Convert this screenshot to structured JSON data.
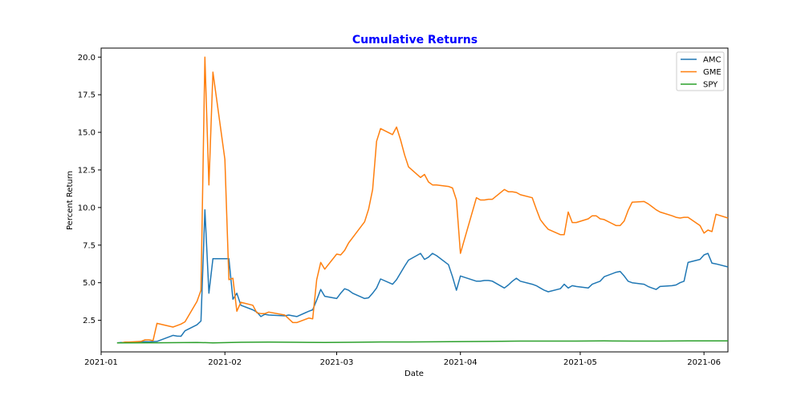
{
  "chart_data": {
    "type": "line",
    "title": "Cumulative Returns",
    "title_color": "#0000ff",
    "xlabel": "Date",
    "ylabel": "Percent Return",
    "xlim": [
      "2021-01-01",
      "2021-06-07"
    ],
    "ylim": [
      0.4,
      20.6
    ],
    "x_ticks": [
      "2021-01",
      "2021-02",
      "2021-03",
      "2021-04",
      "2021-05",
      "2021-06"
    ],
    "x_tick_dates": [
      "2021-01-01",
      "2021-02-01",
      "2021-03-01",
      "2021-04-01",
      "2021-05-01",
      "2021-06-01"
    ],
    "y_ticks": [
      "2.5",
      "5.0",
      "7.5",
      "10.0",
      "12.5",
      "15.0",
      "17.5",
      "20.0"
    ],
    "y_tick_values": [
      2.5,
      5.0,
      7.5,
      10.0,
      12.5,
      15.0,
      17.5,
      20.0
    ],
    "grid": false,
    "legend_position": "top-right",
    "series": [
      {
        "name": "AMC",
        "color": "#1f77b4",
        "points": [
          [
            "2021-01-05",
            1.0
          ],
          [
            "2021-01-06",
            1.03
          ],
          [
            "2021-01-07",
            1.02
          ],
          [
            "2021-01-08",
            1.03
          ],
          [
            "2021-01-11",
            1.05
          ],
          [
            "2021-01-12",
            1.08
          ],
          [
            "2021-01-13",
            1.07
          ],
          [
            "2021-01-14",
            1.09
          ],
          [
            "2021-01-15",
            1.1
          ],
          [
            "2021-01-19",
            1.5
          ],
          [
            "2021-01-20",
            1.45
          ],
          [
            "2021-01-21",
            1.44
          ],
          [
            "2021-01-22",
            1.8
          ],
          [
            "2021-01-25",
            2.2
          ],
          [
            "2021-01-26",
            2.45
          ],
          [
            "2021-01-27",
            9.85
          ],
          [
            "2021-01-28",
            4.3
          ],
          [
            "2021-01-29",
            6.6
          ],
          [
            "2021-02-01",
            6.6
          ],
          [
            "2021-02-02",
            6.6
          ],
          [
            "2021-02-03",
            3.9
          ],
          [
            "2021-02-04",
            4.3
          ],
          [
            "2021-02-05",
            3.5
          ],
          [
            "2021-02-08",
            3.2
          ],
          [
            "2021-02-09",
            3.05
          ],
          [
            "2021-02-10",
            2.75
          ],
          [
            "2021-02-11",
            2.9
          ],
          [
            "2021-02-12",
            2.85
          ],
          [
            "2021-02-16",
            2.8
          ],
          [
            "2021-02-17",
            2.85
          ],
          [
            "2021-02-18",
            2.8
          ],
          [
            "2021-02-19",
            2.75
          ],
          [
            "2021-02-22",
            3.1
          ],
          [
            "2021-02-23",
            3.2
          ],
          [
            "2021-02-24",
            3.85
          ],
          [
            "2021-02-25",
            4.55
          ],
          [
            "2021-02-26",
            4.1
          ],
          [
            "2021-03-01",
            3.95
          ],
          [
            "2021-03-02",
            4.3
          ],
          [
            "2021-03-03",
            4.6
          ],
          [
            "2021-03-04",
            4.5
          ],
          [
            "2021-03-05",
            4.3
          ],
          [
            "2021-03-08",
            3.95
          ],
          [
            "2021-03-09",
            4.0
          ],
          [
            "2021-03-10",
            4.3
          ],
          [
            "2021-03-11",
            4.65
          ],
          [
            "2021-03-12",
            5.25
          ],
          [
            "2021-03-15",
            4.9
          ],
          [
            "2021-03-16",
            5.2
          ],
          [
            "2021-03-17",
            5.65
          ],
          [
            "2021-03-18",
            6.1
          ],
          [
            "2021-03-19",
            6.5
          ],
          [
            "2021-03-22",
            6.95
          ],
          [
            "2021-03-23",
            6.55
          ],
          [
            "2021-03-24",
            6.7
          ],
          [
            "2021-03-25",
            6.95
          ],
          [
            "2021-03-26",
            6.8
          ],
          [
            "2021-03-29",
            6.2
          ],
          [
            "2021-03-30",
            5.4
          ],
          [
            "2021-03-31",
            4.5
          ],
          [
            "2021-04-01",
            5.45
          ],
          [
            "2021-04-05",
            5.1
          ],
          [
            "2021-04-06",
            5.1
          ],
          [
            "2021-04-07",
            5.15
          ],
          [
            "2021-04-08",
            5.15
          ],
          [
            "2021-04-09",
            5.1
          ],
          [
            "2021-04-12",
            4.65
          ],
          [
            "2021-04-13",
            4.85
          ],
          [
            "2021-04-14",
            5.1
          ],
          [
            "2021-04-15",
            5.3
          ],
          [
            "2021-04-16",
            5.1
          ],
          [
            "2021-04-19",
            4.9
          ],
          [
            "2021-04-20",
            4.8
          ],
          [
            "2021-04-21",
            4.65
          ],
          [
            "2021-04-22",
            4.5
          ],
          [
            "2021-04-23",
            4.4
          ],
          [
            "2021-04-26",
            4.6
          ],
          [
            "2021-04-27",
            4.9
          ],
          [
            "2021-04-28",
            4.65
          ],
          [
            "2021-04-29",
            4.8
          ],
          [
            "2021-04-30",
            4.75
          ],
          [
            "2021-05-03",
            4.65
          ],
          [
            "2021-05-04",
            4.9
          ],
          [
            "2021-05-05",
            5.0
          ],
          [
            "2021-05-06",
            5.1
          ],
          [
            "2021-05-07",
            5.4
          ],
          [
            "2021-05-10",
            5.7
          ],
          [
            "2021-05-11",
            5.75
          ],
          [
            "2021-05-12",
            5.45
          ],
          [
            "2021-05-13",
            5.1
          ],
          [
            "2021-05-14",
            5.0
          ],
          [
            "2021-05-17",
            4.9
          ],
          [
            "2021-05-18",
            4.75
          ],
          [
            "2021-05-19",
            4.65
          ],
          [
            "2021-05-20",
            4.55
          ],
          [
            "2021-05-21",
            4.75
          ],
          [
            "2021-05-24",
            4.8
          ],
          [
            "2021-05-25",
            4.85
          ],
          [
            "2021-05-26",
            5.0
          ],
          [
            "2021-05-27",
            5.1
          ],
          [
            "2021-05-28",
            6.35
          ],
          [
            "2021-05-31",
            6.55
          ],
          [
            "2021-06-01",
            6.85
          ],
          [
            "2021-06-02",
            6.95
          ],
          [
            "2021-06-03",
            6.3
          ],
          [
            "2021-06-04",
            6.25
          ],
          [
            "2021-06-07",
            6.05
          ]
        ]
      },
      {
        "name": "GME",
        "color": "#ff7f0e",
        "points": [
          [
            "2021-01-05",
            1.0
          ],
          [
            "2021-01-06",
            1.0
          ],
          [
            "2021-01-07",
            1.05
          ],
          [
            "2021-01-08",
            1.05
          ],
          [
            "2021-01-11",
            1.1
          ],
          [
            "2021-01-12",
            1.2
          ],
          [
            "2021-01-13",
            1.2
          ],
          [
            "2021-01-14",
            1.15
          ],
          [
            "2021-01-15",
            2.3
          ],
          [
            "2021-01-19",
            2.05
          ],
          [
            "2021-01-20",
            2.15
          ],
          [
            "2021-01-21",
            2.25
          ],
          [
            "2021-01-22",
            2.4
          ],
          [
            "2021-01-25",
            3.75
          ],
          [
            "2021-01-26",
            4.5
          ],
          [
            "2021-01-27",
            20.0
          ],
          [
            "2021-01-28",
            11.5
          ],
          [
            "2021-01-29",
            19.0
          ],
          [
            "2021-02-01",
            13.2
          ],
          [
            "2021-02-02",
            5.2
          ],
          [
            "2021-02-03",
            5.3
          ],
          [
            "2021-02-04",
            3.1
          ],
          [
            "2021-02-05",
            3.7
          ],
          [
            "2021-02-08",
            3.5
          ],
          [
            "2021-02-09",
            3.0
          ],
          [
            "2021-02-10",
            2.95
          ],
          [
            "2021-02-11",
            2.95
          ],
          [
            "2021-02-12",
            3.05
          ],
          [
            "2021-02-16",
            2.85
          ],
          [
            "2021-02-17",
            2.6
          ],
          [
            "2021-02-18",
            2.35
          ],
          [
            "2021-02-19",
            2.35
          ],
          [
            "2021-02-22",
            2.65
          ],
          [
            "2021-02-23",
            2.6
          ],
          [
            "2021-02-24",
            5.2
          ],
          [
            "2021-02-25",
            6.35
          ],
          [
            "2021-02-26",
            5.9
          ],
          [
            "2021-03-01",
            6.9
          ],
          [
            "2021-03-02",
            6.85
          ],
          [
            "2021-03-03",
            7.15
          ],
          [
            "2021-03-04",
            7.65
          ],
          [
            "2021-03-05",
            8.0
          ],
          [
            "2021-03-08",
            9.05
          ],
          [
            "2021-03-09",
            9.9
          ],
          [
            "2021-03-10",
            11.2
          ],
          [
            "2021-03-11",
            14.4
          ],
          [
            "2021-03-12",
            15.25
          ],
          [
            "2021-03-15",
            14.85
          ],
          [
            "2021-03-16",
            15.35
          ],
          [
            "2021-03-17",
            14.5
          ],
          [
            "2021-03-18",
            13.5
          ],
          [
            "2021-03-19",
            12.7
          ],
          [
            "2021-03-22",
            12.0
          ],
          [
            "2021-03-23",
            12.2
          ],
          [
            "2021-03-24",
            11.7
          ],
          [
            "2021-03-25",
            11.5
          ],
          [
            "2021-03-26",
            11.5
          ],
          [
            "2021-03-29",
            11.4
          ],
          [
            "2021-03-30",
            11.3
          ],
          [
            "2021-03-31",
            10.5
          ],
          [
            "2021-04-01",
            6.95
          ],
          [
            "2021-04-05",
            10.65
          ],
          [
            "2021-04-06",
            10.5
          ],
          [
            "2021-04-07",
            10.5
          ],
          [
            "2021-04-08",
            10.55
          ],
          [
            "2021-04-09",
            10.55
          ],
          [
            "2021-04-12",
            11.2
          ],
          [
            "2021-04-13",
            11.05
          ],
          [
            "2021-04-14",
            11.05
          ],
          [
            "2021-04-15",
            11.0
          ],
          [
            "2021-04-16",
            10.85
          ],
          [
            "2021-04-19",
            10.65
          ],
          [
            "2021-04-20",
            9.9
          ],
          [
            "2021-04-21",
            9.2
          ],
          [
            "2021-04-22",
            8.85
          ],
          [
            "2021-04-23",
            8.55
          ],
          [
            "2021-04-26",
            8.2
          ],
          [
            "2021-04-27",
            8.2
          ],
          [
            "2021-04-28",
            9.7
          ],
          [
            "2021-04-29",
            9.0
          ],
          [
            "2021-04-30",
            9.0
          ],
          [
            "2021-05-03",
            9.25
          ],
          [
            "2021-05-04",
            9.45
          ],
          [
            "2021-05-05",
            9.45
          ],
          [
            "2021-05-06",
            9.25
          ],
          [
            "2021-05-07",
            9.2
          ],
          [
            "2021-05-10",
            8.8
          ],
          [
            "2021-05-11",
            8.8
          ],
          [
            "2021-05-12",
            9.1
          ],
          [
            "2021-05-13",
            9.8
          ],
          [
            "2021-05-14",
            10.35
          ],
          [
            "2021-05-17",
            10.4
          ],
          [
            "2021-05-18",
            10.25
          ],
          [
            "2021-05-19",
            10.05
          ],
          [
            "2021-05-20",
            9.85
          ],
          [
            "2021-05-21",
            9.7
          ],
          [
            "2021-05-24",
            9.45
          ],
          [
            "2021-05-25",
            9.35
          ],
          [
            "2021-05-26",
            9.3
          ],
          [
            "2021-05-27",
            9.35
          ],
          [
            "2021-05-28",
            9.35
          ],
          [
            "2021-05-31",
            8.8
          ],
          [
            "2021-06-01",
            8.3
          ],
          [
            "2021-06-02",
            8.5
          ],
          [
            "2021-06-03",
            8.4
          ],
          [
            "2021-06-04",
            9.55
          ],
          [
            "2021-06-07",
            9.3
          ]
        ]
      },
      {
        "name": "SPY",
        "color": "#2ca02c",
        "points": [
          [
            "2021-01-05",
            1.0
          ],
          [
            "2021-01-15",
            1.01
          ],
          [
            "2021-01-25",
            1.03
          ],
          [
            "2021-01-29",
            1.0
          ],
          [
            "2021-02-05",
            1.04
          ],
          [
            "2021-02-12",
            1.05
          ],
          [
            "2021-02-19",
            1.04
          ],
          [
            "2021-02-26",
            1.03
          ],
          [
            "2021-03-05",
            1.04
          ],
          [
            "2021-03-12",
            1.06
          ],
          [
            "2021-03-19",
            1.06
          ],
          [
            "2021-03-26",
            1.07
          ],
          [
            "2021-04-02",
            1.09
          ],
          [
            "2021-04-09",
            1.1
          ],
          [
            "2021-04-16",
            1.12
          ],
          [
            "2021-04-23",
            1.12
          ],
          [
            "2021-04-30",
            1.12
          ],
          [
            "2021-05-07",
            1.13
          ],
          [
            "2021-05-14",
            1.12
          ],
          [
            "2021-05-21",
            1.12
          ],
          [
            "2021-05-28",
            1.13
          ],
          [
            "2021-06-07",
            1.13
          ]
        ]
      }
    ]
  }
}
